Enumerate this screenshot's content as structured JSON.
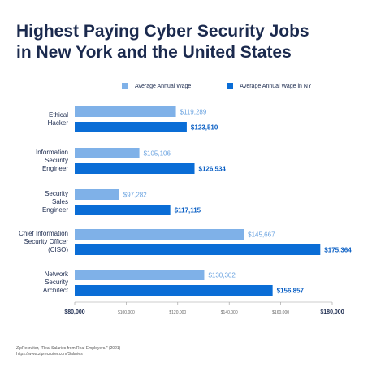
{
  "title_lines": [
    "Highest Paying Cyber Security Jobs",
    "in New York and the United States"
  ],
  "legend": {
    "series_a": "Average Annual Wage",
    "series_b": "Average Annual Wage in NY"
  },
  "colors": {
    "series_a": "#7fb1e8",
    "series_b": "#0a6dd6",
    "label_a": "#6aa3e0",
    "label_b": "#0a5fc4",
    "title": "#1b2a4e",
    "axis": "#999999"
  },
  "source_lines": [
    "ZipRecruiter, \"Real Salaries from Real Employers.\" (2021)",
    "https://www.ziprecruiter.com/Salaries"
  ],
  "chart_data": {
    "type": "bar",
    "orientation": "horizontal",
    "title": "Highest Paying Cyber Security Jobs in New York and the United States",
    "categories": [
      [
        "Ethical",
        "Hacker"
      ],
      [
        "Information",
        "Security",
        "Engineer"
      ],
      [
        "Security",
        "Sales",
        "Engineer"
      ],
      [
        "Chief Information",
        "Security Officer",
        "(CISO)"
      ],
      [
        "Network",
        "Security",
        "Architect"
      ]
    ],
    "series": [
      {
        "name": "Average Annual Wage",
        "values": [
          119289,
          105106,
          97282,
          145667,
          130302
        ],
        "labels": [
          "$119,289",
          "$105,106",
          "$97,282",
          "$145,667",
          "$130,302"
        ]
      },
      {
        "name": "Average Annual Wage in NY",
        "values": [
          123510,
          126534,
          117115,
          175364,
          156857
        ],
        "labels": [
          "$123,510",
          "$126,534",
          "$117,115",
          "$175,364",
          "$156,857"
        ]
      }
    ],
    "xlim": [
      80000,
      180000
    ],
    "xticks": [
      80000,
      100000,
      120000,
      140000,
      160000,
      180000
    ],
    "xtick_labels": [
      "$80,000",
      "$100,000",
      "$120,000",
      "$140,000",
      "$160,000",
      "$180,000"
    ],
    "grid": false,
    "legend_position": "top"
  }
}
